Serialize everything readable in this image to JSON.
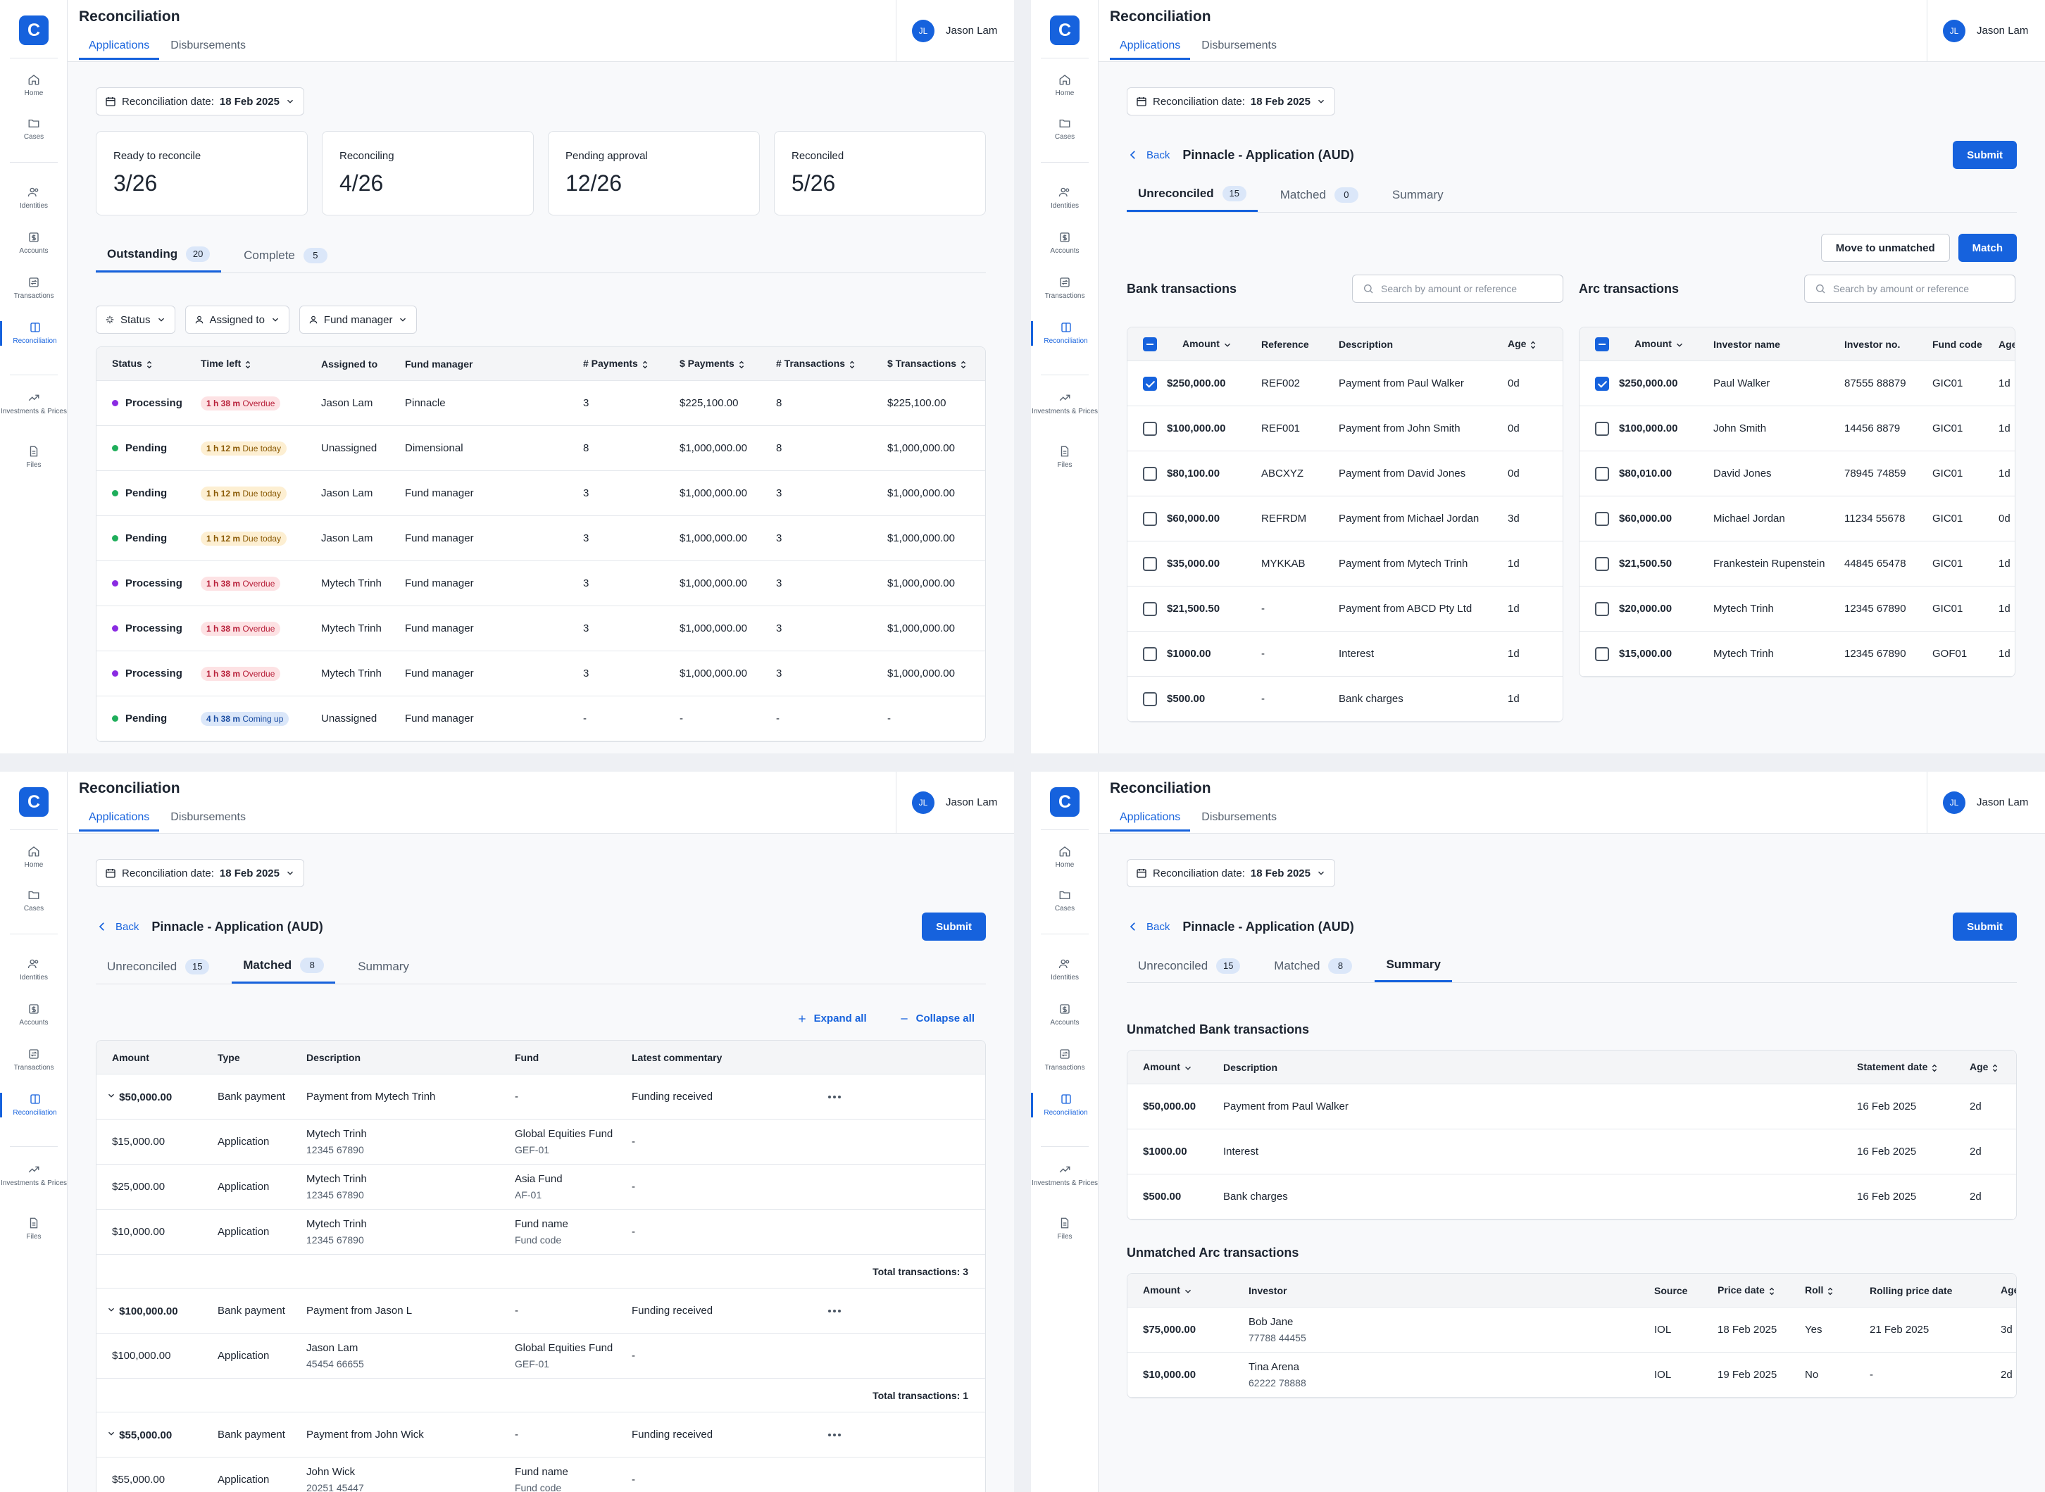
{
  "app": {
    "logo": "C",
    "title": "Reconciliation",
    "tabs": [
      "Applications",
      "Disbursements"
    ],
    "user_initials": "JL",
    "user_name": "Jason Lam"
  },
  "nav": {
    "home": "Home",
    "cases": "Cases",
    "identities": "Identities",
    "accounts": "Accounts",
    "transactions": "Transactions",
    "reconciliation": "Reconciliation",
    "investments": "Investments & Prices",
    "files": "Files"
  },
  "date": {
    "label": "Reconciliation date:",
    "value": "18 Feb 2025"
  },
  "overview": {
    "cards": [
      {
        "label": "Ready to reconcile",
        "value": "3/26"
      },
      {
        "label": "Reconciling",
        "value": "4/26"
      },
      {
        "label": "Pending approval",
        "value": "12/26"
      },
      {
        "label": "Reconciled",
        "value": "5/26"
      }
    ],
    "tabs": [
      {
        "label": "Outstanding",
        "count": "20"
      },
      {
        "label": "Complete",
        "count": "5"
      }
    ],
    "filters": [
      "Status",
      "Assigned to",
      "Fund manager"
    ],
    "headers": [
      "Status",
      "Time left",
      "Assigned to",
      "Fund manager",
      "# Payments",
      "$ Payments",
      "# Transactions",
      "$ Transactions"
    ],
    "rows": [
      {
        "status": "Processing",
        "time": "1 h 38 m",
        "tag": "Overdue",
        "assigned": "Jason Lam",
        "fm": "Pinnacle",
        "np": "3",
        "dp": "$225,100.00",
        "nt": "8",
        "dt": "$225,100.00"
      },
      {
        "status": "Pending",
        "time": "1 h 12 m",
        "tag": "Due today",
        "assigned": "Unassigned",
        "fm": "Dimensional",
        "np": "8",
        "dp": "$1,000,000.00",
        "nt": "8",
        "dt": "$1,000,000.00"
      },
      {
        "status": "Pending",
        "time": "1 h 12 m",
        "tag": "Due today",
        "assigned": "Jason Lam",
        "fm": "Fund manager",
        "np": "3",
        "dp": "$1,000,000.00",
        "nt": "3",
        "dt": "$1,000,000.00"
      },
      {
        "status": "Pending",
        "time": "1 h 12 m",
        "tag": "Due today",
        "assigned": "Jason Lam",
        "fm": "Fund manager",
        "np": "3",
        "dp": "$1,000,000.00",
        "nt": "3",
        "dt": "$1,000,000.00"
      },
      {
        "status": "Processing",
        "time": "1 h 38 m",
        "tag": "Overdue",
        "assigned": "Mytech Trinh",
        "fm": "Fund manager",
        "np": "3",
        "dp": "$1,000,000.00",
        "nt": "3",
        "dt": "$1,000,000.00"
      },
      {
        "status": "Processing",
        "time": "1 h 38 m",
        "tag": "Overdue",
        "assigned": "Mytech Trinh",
        "fm": "Fund manager",
        "np": "3",
        "dp": "$1,000,000.00",
        "nt": "3",
        "dt": "$1,000,000.00"
      },
      {
        "status": "Processing",
        "time": "1 h 38 m",
        "tag": "Overdue",
        "assigned": "Mytech Trinh",
        "fm": "Fund manager",
        "np": "3",
        "dp": "$1,000,000.00",
        "nt": "3",
        "dt": "$1,000,000.00"
      },
      {
        "status": "Pending",
        "time": "4 h 38 m",
        "tag": "Coming up",
        "assigned": "Unassigned",
        "fm": "Fund manager",
        "np": "-",
        "dp": "-",
        "nt": "-",
        "dt": "-"
      }
    ]
  },
  "app_detail": {
    "back": "Back",
    "title": "Pinnacle - Application (AUD)",
    "submit": "Submit",
    "tabs": {
      "unreconciled": "Unreconciled",
      "unreconciled_count": "15",
      "matched": "Matched",
      "matched_count_a": "0",
      "matched_count_b": "8",
      "summary": "Summary"
    }
  },
  "unreconciled": {
    "move": "Move to unmatched",
    "match": "Match",
    "bank_title": "Bank transactions",
    "arc_title": "Arc transactions",
    "search_ph": "Search by amount or reference",
    "bank_headers": [
      "Amount",
      "Reference",
      "Description",
      "Age"
    ],
    "bank_rows": [
      {
        "amount": "$250,000.00",
        "ref": "REF002",
        "desc": "Payment from Paul Walker",
        "age": "0d",
        "checked": true
      },
      {
        "amount": "$100,000.00",
        "ref": "REF001",
        "desc": "Payment from John Smith",
        "age": "0d",
        "checked": false
      },
      {
        "amount": "$80,100.00",
        "ref": "ABCXYZ",
        "desc": "Payment from David Jones",
        "age": "0d",
        "checked": false
      },
      {
        "amount": "$60,000.00",
        "ref": "REFRDM",
        "desc": "Payment from Michael Jordan",
        "age": "3d",
        "checked": false
      },
      {
        "amount": "$35,000.00",
        "ref": "MYKKAB",
        "desc": "Payment from Mytech Trinh",
        "age": "1d",
        "checked": false
      },
      {
        "amount": "$21,500.50",
        "ref": "-",
        "desc": "Payment from ABCD Pty Ltd",
        "age": "1d",
        "checked": false
      },
      {
        "amount": "$1000.00",
        "ref": "-",
        "desc": "Interest",
        "age": "1d",
        "checked": false
      },
      {
        "amount": "$500.00",
        "ref": "-",
        "desc": "Bank charges",
        "age": "1d",
        "checked": false
      }
    ],
    "arc_headers": [
      "Amount",
      "Investor name",
      "Investor no.",
      "Fund code",
      "Age"
    ],
    "arc_rows": [
      {
        "amount": "$250,000.00",
        "name": "Paul Walker",
        "no": "87555 88879",
        "fund": "GIC01",
        "age": "1d",
        "checked": true
      },
      {
        "amount": "$100,000.00",
        "name": "John Smith",
        "no": "14456 8879",
        "fund": "GIC01",
        "age": "1d",
        "checked": false
      },
      {
        "amount": "$80,010.00",
        "name": "David Jones",
        "no": "78945 74859",
        "fund": "GIC01",
        "age": "1d",
        "checked": false
      },
      {
        "amount": "$60,000.00",
        "name": "Michael Jordan",
        "no": "11234 55678",
        "fund": "GIC01",
        "age": "0d",
        "checked": false
      },
      {
        "amount": "$21,500.50",
        "name": "Frankestein Rupenstein",
        "no": "44845 65478",
        "fund": "GIC01",
        "age": "1d",
        "checked": false
      },
      {
        "amount": "$20,000.00",
        "name": "Mytech Trinh",
        "no": "12345 67890",
        "fund": "GIC01",
        "age": "1d",
        "checked": false
      },
      {
        "amount": "$15,000.00",
        "name": "Mytech Trinh",
        "no": "12345 67890",
        "fund": "GOF01",
        "age": "1d",
        "checked": false
      }
    ]
  },
  "matched": {
    "expand": "Expand all",
    "collapse": "Collapse all",
    "headers": [
      "Amount",
      "Type",
      "Description",
      "Fund",
      "Latest commentary"
    ],
    "groups": [
      {
        "amount": "$50,000.00",
        "type": "Bank payment",
        "desc": "Payment from Mytech Trinh",
        "fund": "-",
        "comment": "Funding received",
        "total": "Total transactions: 3",
        "items": [
          {
            "amount": "$15,000.00",
            "type": "Application",
            "name": "Mytech Trinh",
            "no": "12345 67890",
            "fund": "Global Equities Fund",
            "code": "GEF-01",
            "comment": "-"
          },
          {
            "amount": "$25,000.00",
            "type": "Application",
            "name": "Mytech Trinh",
            "no": "12345 67890",
            "fund": "Asia Fund",
            "code": "AF-01",
            "comment": "-"
          },
          {
            "amount": "$10,000.00",
            "type": "Application",
            "name": "Mytech Trinh",
            "no": "12345 67890",
            "fund": "Fund name",
            "code": "Fund code",
            "comment": "-"
          }
        ]
      },
      {
        "amount": "$100,000.00",
        "type": "Bank payment",
        "desc": "Payment from Jason L",
        "fund": "-",
        "comment": "Funding received",
        "total": "Total transactions: 1",
        "items": [
          {
            "amount": "$100,000.00",
            "type": "Application",
            "name": "Jason Lam",
            "no": "45454 66655",
            "fund": "Global Equities Fund",
            "code": "GEF-01",
            "comment": "-"
          }
        ]
      },
      {
        "amount": "$55,000.00",
        "type": "Bank payment",
        "desc": "Payment from John Wick",
        "fund": "-",
        "comment": "Funding received",
        "total": "",
        "items": [
          {
            "amount": "$55,000.00",
            "type": "Application",
            "name": "John Wick",
            "no": "20251 45447",
            "fund": "Fund name",
            "code": "Fund code",
            "comment": "-"
          }
        ]
      }
    ]
  },
  "summary": {
    "bank_title": "Unmatched Bank transactions",
    "bank_headers": [
      "Amount",
      "Description",
      "Statement date",
      "Age"
    ],
    "bank_rows": [
      {
        "amount": "$50,000.00",
        "desc": "Payment from Paul Walker",
        "date": "16 Feb 2025",
        "age": "2d"
      },
      {
        "amount": "$1000.00",
        "desc": "Interest",
        "date": "16 Feb 2025",
        "age": "2d"
      },
      {
        "amount": "$500.00",
        "desc": "Bank charges",
        "date": "16 Feb 2025",
        "age": "2d"
      }
    ],
    "arc_title": "Unmatched Arc transactions",
    "arc_headers": [
      "Amount",
      "Investor",
      "Source",
      "Price date",
      "Roll",
      "Rolling price date",
      "Age"
    ],
    "arc_rows": [
      {
        "amount": "$75,000.00",
        "name": "Bob Jane",
        "no": "77788 44455",
        "source": "IOL",
        "pdate": "18 Feb 2025",
        "roll": "Yes",
        "rdate": "21 Feb 2025",
        "age": "3d"
      },
      {
        "amount": "$10,000.00",
        "name": "Tina Arena",
        "no": "62222 78888",
        "source": "IOL",
        "pdate": "19 Feb 2025",
        "roll": "No",
        "rdate": "-",
        "age": "2d"
      }
    ]
  }
}
